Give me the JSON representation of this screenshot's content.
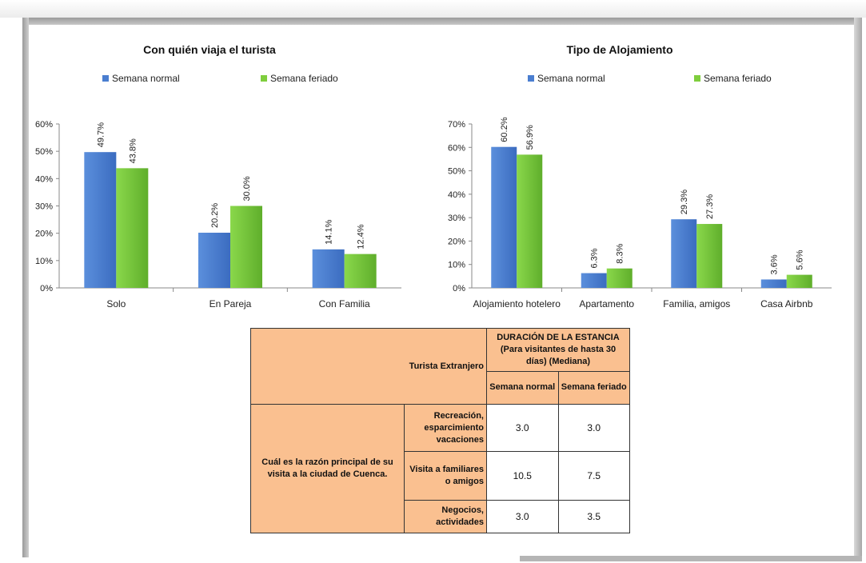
{
  "colors": {
    "normal": "#4a7ed0",
    "feriado": "#7fce3d",
    "table_header": "#fac090"
  },
  "chart_data": [
    {
      "type": "bar",
      "title": "Con quién viaja el turista",
      "categories": [
        "Solo",
        "En Pareja",
        "Con Familia"
      ],
      "series": [
        {
          "name": "Semana normal",
          "values": [
            49.7,
            20.2,
            14.1
          ],
          "labels": [
            "49.7%",
            "20.2%",
            "14.1%"
          ]
        },
        {
          "name": "Semana feriado",
          "values": [
            43.8,
            30.0,
            12.4
          ],
          "labels": [
            "43.8%",
            "30.0%",
            "12.4%"
          ]
        }
      ],
      "ylim": [
        0,
        60
      ],
      "yticks": [
        "0%",
        "10%",
        "20%",
        "30%",
        "40%",
        "50%",
        "60%"
      ],
      "legend": "top",
      "grid": false
    },
    {
      "type": "bar",
      "title": "Tipo de Alojamiento",
      "categories": [
        "Alojamiento hotelero",
        "Apartamento",
        "Familia, amigos",
        "Casa Airbnb"
      ],
      "series": [
        {
          "name": "Semana normal",
          "values": [
            60.2,
            6.3,
            29.3,
            3.6
          ],
          "labels": [
            "60.2%",
            "6.3%",
            "29.3%",
            "3.6%"
          ]
        },
        {
          "name": "Semana feriado",
          "values": [
            56.9,
            8.3,
            27.3,
            5.6
          ],
          "labels": [
            "56.9%",
            "8.3%",
            "27.3%",
            "5.6%"
          ]
        }
      ],
      "ylim": [
        0,
        70
      ],
      "yticks": [
        "0%",
        "10%",
        "20%",
        "30%",
        "40%",
        "50%",
        "60%",
        "70%"
      ],
      "legend": "top",
      "grid": false
    }
  ],
  "table": {
    "corner_label": "Turista Extranjero",
    "header": "DURACIÓN DE LA ESTANCIA (Para visitantes de hasta 30 días) (Mediana)",
    "col1": "Semana normal",
    "col2": "Semana feriado",
    "row_group": "Cuál es la razón principal de su visita a la ciudad de Cuenca.",
    "rows": [
      {
        "label": "Recreación, esparcimiento vacaciones",
        "normal": "3.0",
        "feriado": "3.0"
      },
      {
        "label": "Visita a familiares o amigos",
        "normal": "10.5",
        "feriado": "7.5"
      },
      {
        "label": "Negocios, actividades",
        "normal": "3.0",
        "feriado": "3.5"
      }
    ]
  }
}
